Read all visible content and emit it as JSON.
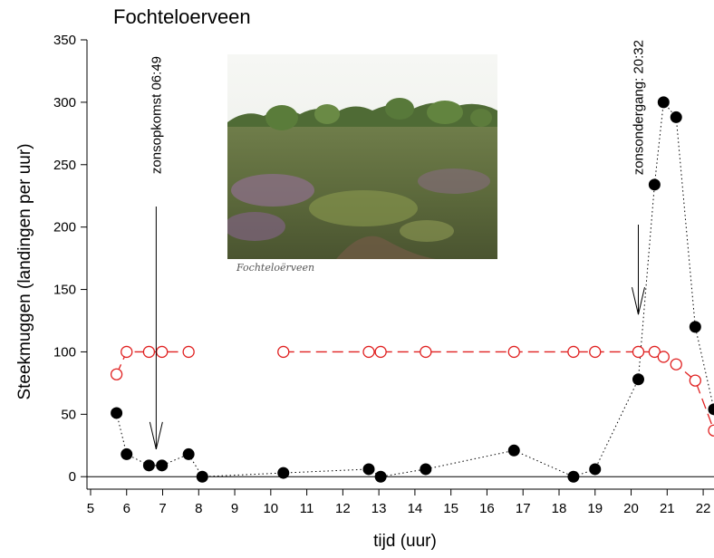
{
  "chart_data": {
    "type": "scatter",
    "title": "Fochteloerveen",
    "xlabel": "tijd (uur)",
    "ylabel": "Steekmuggen (landingen per uur)",
    "xlim": [
      4.9,
      22.3
    ],
    "ylim": [
      -10,
      350
    ],
    "xticks": [
      5,
      6,
      7,
      8,
      9,
      10,
      11,
      12,
      13,
      14,
      15,
      16,
      17,
      18,
      19,
      20,
      21,
      22
    ],
    "yticks": [
      0,
      50,
      100,
      150,
      200,
      250,
      300,
      350
    ],
    "series": [
      {
        "style": "black filled circles, dotted line",
        "color": "#000000",
        "x": [
          5.72,
          6.0,
          6.62,
          6.98,
          7.72,
          8.1,
          10.35,
          12.72,
          13.05,
          14.3,
          16.75,
          18.4,
          19.0,
          20.2,
          20.65,
          20.9,
          21.25,
          21.78,
          22.3
        ],
        "y": [
          51,
          18,
          9,
          9,
          18,
          0,
          3,
          6,
          0,
          6,
          21,
          0,
          6,
          78,
          234,
          300,
          288,
          120,
          54
        ]
      },
      {
        "style": "red open circles, dashed line",
        "color": "#e02020",
        "x": [
          5.72,
          6.0,
          6.62,
          6.98,
          7.72,
          10.35,
          12.72,
          13.05,
          14.3,
          16.75,
          18.4,
          19.0,
          20.2,
          20.65,
          20.9,
          21.25,
          21.78,
          22.3
        ],
        "y": [
          82,
          100,
          100,
          100,
          100,
          100,
          100,
          100,
          100,
          100,
          100,
          100,
          100,
          100,
          96,
          90,
          77,
          37
        ]
      }
    ],
    "annotations": [
      {
        "text": "zonsopkomst 06:49",
        "x": 6.82,
        "arrow_to_y": 22
      },
      {
        "text": "zonsondergang: 20:32",
        "x": 20.2,
        "arrow_to_y": 130
      }
    ]
  },
  "photo": {
    "caption": "Fochteloërveen"
  }
}
